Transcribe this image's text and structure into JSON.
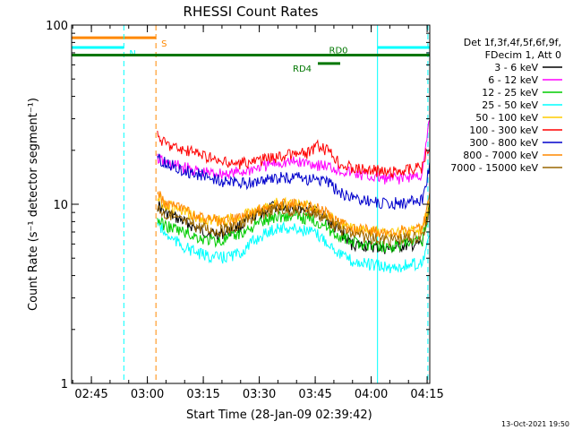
{
  "chart_data": {
    "type": "line",
    "title": "RHESSI Count Rates",
    "xlabel": "Start Time (28-Jan-09 02:39:42)",
    "ylabel": "Count Rate (s⁻¹ detector segment⁻¹)",
    "y_scale": "log",
    "ylim": [
      1,
      100
    ],
    "y_ticks": [
      {
        "value": 1,
        "label": "1"
      },
      {
        "value": 10,
        "label": "10"
      },
      {
        "value": 100,
        "label": "100"
      }
    ],
    "xlim_minutes": [
      0,
      96
    ],
    "x_ticks": [
      {
        "minute": 5.3,
        "label": "02:45"
      },
      {
        "minute": 20.3,
        "label": "03:00"
      },
      {
        "minute": 35.3,
        "label": "03:15"
      },
      {
        "minute": 50.3,
        "label": "03:30"
      },
      {
        "minute": 65.3,
        "label": "03:45"
      },
      {
        "minute": 80.3,
        "label": "04:00"
      },
      {
        "minute": 95.3,
        "label": "04:15"
      }
    ],
    "legend_header": [
      "Det 1f,3f,4f,5f,6f,9f,",
      "FDecim 1, Att 0"
    ],
    "legend_position": "right",
    "x_minutes": [
      23,
      25,
      30,
      35,
      40,
      45,
      50,
      55,
      60,
      64,
      66,
      68,
      70,
      72,
      75,
      80,
      85,
      88,
      94,
      96
    ],
    "series": [
      {
        "name": "3 - 6 keV",
        "color": "#000000",
        "values": [
          10.0,
          9.0,
          8.0,
          7.0,
          6.8,
          7.5,
          8.8,
          9.8,
          9.6,
          9.4,
          9.0,
          8.5,
          7.5,
          7.0,
          6.0,
          5.8,
          5.6,
          5.8,
          6.0,
          10.0
        ]
      },
      {
        "name": "6 - 12 keV",
        "color": "#ff00ff",
        "values": [
          18.0,
          17.0,
          16.0,
          15.0,
          14.8,
          15.0,
          16.0,
          17.0,
          17.2,
          17.0,
          16.6,
          16.3,
          16.0,
          15.5,
          15.0,
          14.2,
          13.8,
          14.0,
          14.5,
          30.0
        ]
      },
      {
        "name": "12 - 25 keV",
        "color": "#00cc00",
        "values": [
          8.2,
          7.6,
          7.0,
          6.4,
          6.2,
          6.8,
          7.8,
          8.6,
          8.5,
          8.3,
          8.0,
          7.6,
          7.0,
          6.6,
          6.2,
          5.9,
          5.8,
          5.9,
          6.2,
          10.0
        ]
      },
      {
        "name": "25 - 50 keV",
        "color": "#00ffff",
        "values": [
          8.0,
          6.8,
          5.8,
          5.2,
          5.0,
          5.3,
          6.5,
          7.4,
          7.3,
          7.0,
          6.7,
          6.3,
          5.8,
          5.3,
          4.8,
          4.6,
          4.4,
          4.5,
          4.7,
          7.0
        ]
      },
      {
        "name": "50 - 100 keV",
        "color": "#ffcc00",
        "values": [
          11.0,
          10.0,
          9.0,
          8.2,
          8.0,
          8.4,
          9.2,
          10.2,
          10.0,
          9.8,
          9.5,
          9.0,
          8.2,
          7.8,
          7.3,
          7.0,
          6.8,
          7.0,
          7.2,
          10.5
        ]
      },
      {
        "name": "100 - 300 keV",
        "color": "#ff0000",
        "values": [
          24.0,
          22.0,
          20.0,
          19.0,
          17.0,
          16.8,
          17.5,
          18.5,
          19.0,
          19.5,
          21.0,
          20.0,
          19.0,
          17.0,
          16.0,
          15.5,
          15.0,
          15.5,
          16.0,
          22.0
        ]
      },
      {
        "name": "300 - 800 keV",
        "color": "#0000cc",
        "values": [
          18.0,
          17.0,
          15.5,
          14.5,
          13.5,
          13.0,
          13.4,
          14.0,
          14.0,
          13.8,
          13.8,
          13.4,
          12.5,
          11.5,
          11.0,
          10.5,
          10.0,
          10.2,
          10.5,
          16.0
        ]
      },
      {
        "name": "800 - 7000 keV",
        "color": "#ff8800",
        "values": [
          11.5,
          10.2,
          9.2,
          8.4,
          8.0,
          8.3,
          9.2,
          10.0,
          9.9,
          9.7,
          9.4,
          9.0,
          8.3,
          7.8,
          7.3,
          7.1,
          6.9,
          7.1,
          7.2,
          11.0
        ]
      },
      {
        "name": "7000 - 15000 keV",
        "color": "#996600",
        "values": [
          9.5,
          8.8,
          8.0,
          7.4,
          7.1,
          7.6,
          8.7,
          9.4,
          9.2,
          9.0,
          8.8,
          8.4,
          7.8,
          7.3,
          6.8,
          6.5,
          6.3,
          6.4,
          6.6,
          9.0
        ]
      }
    ],
    "annotations": [
      {
        "label": "S",
        "color": "#ff8800",
        "bar_minutes": [
          0,
          22.6
        ],
        "bar_value": 85,
        "line_minute": 22.6,
        "line_style": "dashed"
      },
      {
        "label": "N",
        "color": "#00ffff",
        "bar_minutes": [
          0,
          14.0
        ],
        "bar_value": 75,
        "line_minute": 14.0,
        "line_style": "dashed"
      },
      {
        "label": "",
        "color": "#00ffff",
        "bar_minutes": [
          82.0,
          96.0
        ],
        "bar_value": 75,
        "line_minute": 82.0,
        "line_style": "solid"
      },
      {
        "label": "",
        "color": "#00ffff",
        "line_minute": 95.5,
        "line_style": "dashed"
      },
      {
        "label": "RD0",
        "color": "#007700",
        "bar_minutes": [
          0,
          96.0
        ],
        "bar_value": 68
      },
      {
        "label": "RD4",
        "color": "#007700",
        "bar_minutes": [
          66.0,
          72.0
        ],
        "bar_value": 61
      }
    ]
  },
  "footer": {
    "timestamp": "13-Oct-2021 19:50"
  }
}
